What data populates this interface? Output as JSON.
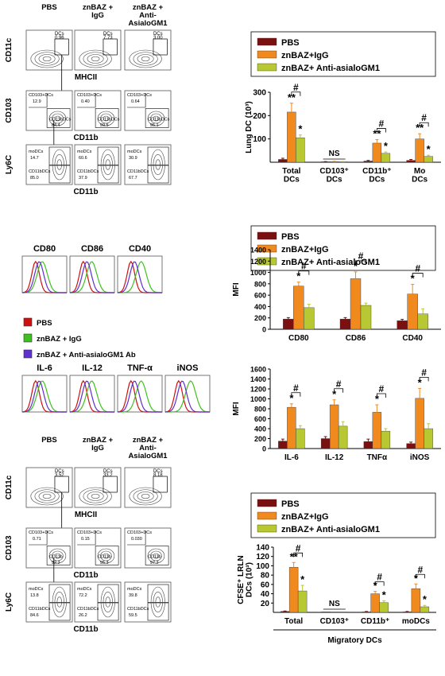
{
  "colors": {
    "pbs": "#7a1010",
    "igg": "#f08a1e",
    "asialo": "#b8c832",
    "frame": "#555555",
    "legend_red": "#d01010",
    "legend_green": "#40c020",
    "legend_blue": "#6030d0"
  },
  "flow_top": {
    "groups": [
      "PBS",
      "znBAZ +\nIgG",
      "znBAZ +\nAnti-\nAsialoGM1"
    ],
    "row1": {
      "ylabel": "CD11c",
      "xlabel": "MHCII",
      "gate": "DCs",
      "values": [
        "0.96",
        "7.73",
        "3.00"
      ]
    },
    "row2": {
      "ylabel": "CD103",
      "xlabel": "CD11b",
      "gate_top": "CD103+DCs",
      "gate_bottom": "CD11bDCs",
      "top_values": [
        "12.9",
        "0.40",
        "0.64"
      ],
      "bottom_values": [
        "84.4",
        "99.5",
        "95.1"
      ]
    },
    "row3": {
      "ylabel": "Ly6C",
      "xlabel": "CD11b",
      "gate_top": "moDCs",
      "gate_bottom": "CD11bDCs",
      "top_values": [
        "14.7",
        "60.6",
        "30.9"
      ],
      "bottom_values": [
        "85.0",
        "37.9",
        "67.7"
      ]
    }
  },
  "histograms_costim": {
    "titles": [
      "CD80",
      "CD86",
      "CD40"
    ]
  },
  "hist_legend": [
    "PBS",
    "znBAZ + IgG",
    "znBAZ + Anti-asialoGM1 Ab"
  ],
  "histograms_cyto": {
    "titles": [
      "IL-6",
      "IL-12",
      "TNF-α",
      "iNOS"
    ]
  },
  "flow_bottom": {
    "groups": [
      "PBS",
      "znBAZ +\nIgG",
      "znBAZ +\nAnti-\nAsialoGM1"
    ],
    "row1": {
      "ylabel": "CD11c",
      "xlabel": "MHCII",
      "gate": "DCs",
      "values": [
        "3.52",
        "33.2",
        "8.18"
      ]
    },
    "row2": {
      "ylabel": "CD103",
      "xlabel": "CD11b",
      "gate_top": "CD103+DCs",
      "gate_bottom": "CD11b",
      "top_values": [
        "0.71",
        "0.15",
        "0.030"
      ],
      "bottom_values": [
        "92.2",
        "95.3",
        "97.2"
      ]
    },
    "row3": {
      "ylabel": "Ly6C",
      "xlabel": "CD11b",
      "gate_top": "moDCs",
      "gate_bottom": "CD11bDCs",
      "top_values": [
        "13.8",
        "72.2",
        "39.8"
      ],
      "bottom_values": [
        "84.6",
        "26.2",
        "59.5"
      ]
    }
  },
  "chart_data": [
    {
      "type": "bar",
      "ylabel": "Lung DC (10³)",
      "ylim": [
        0,
        300
      ],
      "yticks": [
        100,
        200,
        300
      ],
      "legend": [
        "PBS",
        "znBAZ+IgG",
        "znBAZ+ Anti-asialoGM1"
      ],
      "categories": [
        "Total\nDCs",
        "CD103⁺\nDCs",
        "CD11b⁺\nDCs",
        "Mo\nDCs"
      ],
      "series": [
        {
          "name": "PBS",
          "values": [
            12,
            2,
            5,
            8
          ]
        },
        {
          "name": "znBAZ+IgG",
          "values": [
            215,
            3,
            82,
            100
          ]
        },
        {
          "name": "znBAZ+ Anti-asialoGM1",
          "values": [
            105,
            2,
            38,
            25
          ]
        }
      ],
      "errors": [
        [
          5,
          1,
          3,
          4
        ],
        [
          38,
          1,
          15,
          22
        ],
        [
          12,
          1,
          6,
          5
        ]
      ],
      "star_labels": [
        [
          "",
          "**",
          "*"
        ],
        [
          "",
          "",
          ""
        ],
        [
          "",
          "**",
          "*"
        ],
        [
          "",
          "**",
          "*"
        ]
      ],
      "brackets": [
        {
          "group": 0,
          "sig": "**",
          "hash": "#"
        },
        {
          "group": 1,
          "text": "NS"
        },
        {
          "group": 2,
          "sig": "",
          "hash": "#"
        },
        {
          "group": 3,
          "sig": "",
          "hash": "#"
        }
      ]
    },
    {
      "type": "bar",
      "ylabel": "MFI",
      "ylim": [
        0,
        1400
      ],
      "yticks": [
        0,
        200,
        400,
        600,
        800,
        1000,
        1200,
        1400
      ],
      "legend": [
        "PBS",
        "znBAZ+IgG",
        "znBAZ+ Anti-asialoGM1"
      ],
      "categories": [
        "CD80",
        "CD86",
        "CD40"
      ],
      "series": [
        {
          "name": "PBS",
          "values": [
            180,
            180,
            150
          ]
        },
        {
          "name": "znBAZ+IgG",
          "values": [
            760,
            890,
            620
          ]
        },
        {
          "name": "znBAZ+ Anti-asialoGM1",
          "values": [
            380,
            420,
            270
          ]
        }
      ],
      "errors": [
        [
          25,
          25,
          25
        ],
        [
          70,
          120,
          170
        ],
        [
          60,
          40,
          90
        ]
      ],
      "star_labels": [
        [
          "",
          "*",
          ""
        ],
        [
          "",
          "*",
          ""
        ],
        [
          "",
          "*",
          ""
        ]
      ],
      "brackets": [
        {
          "group": 0,
          "hash": "#"
        },
        {
          "group": 1,
          "hash": "#"
        },
        {
          "group": 2,
          "hash": "#"
        }
      ]
    },
    {
      "type": "bar",
      "ylabel": "MFI",
      "ylim": [
        0,
        1600
      ],
      "yticks": [
        0,
        200,
        400,
        600,
        800,
        1000,
        1200,
        1400,
        1600
      ],
      "categories": [
        "IL-6",
        "IL-12",
        "TNFα",
        "iNOS"
      ],
      "series": [
        {
          "values": [
            150,
            200,
            140,
            100
          ]
        },
        {
          "values": [
            830,
            880,
            730,
            1010
          ]
        },
        {
          "values": [
            400,
            450,
            350,
            400
          ]
        }
      ],
      "errors": [
        [
          40,
          40,
          50,
          30
        ],
        [
          70,
          100,
          150,
          200
        ],
        [
          60,
          90,
          50,
          100
        ]
      ],
      "star_labels": [
        [
          "",
          "*",
          ""
        ],
        [
          "",
          "*",
          ""
        ],
        [
          "",
          "*",
          ""
        ],
        [
          "",
          "*",
          ""
        ]
      ],
      "brackets": [
        {
          "group": 0,
          "hash": "#"
        },
        {
          "group": 1,
          "hash": "#"
        },
        {
          "group": 2,
          "hash": "#"
        },
        {
          "group": 3,
          "hash": "#"
        }
      ]
    },
    {
      "type": "bar",
      "ylabel": "CFSE⁺ LRLN\nDCs (10³)",
      "xlabel": "Migratory DCs",
      "ylim": [
        0,
        140
      ],
      "yticks": [
        20,
        40,
        60,
        80,
        100,
        120,
        140
      ],
      "legend": [
        "PBS",
        "znBAZ+IgG",
        "znBAZ+ Anti-asialoGM1"
      ],
      "categories": [
        "Total",
        "CD103⁺",
        "CD11b⁺",
        "moDCs"
      ],
      "series": [
        {
          "name": "PBS",
          "values": [
            2,
            1,
            1,
            1
          ]
        },
        {
          "name": "znBAZ+IgG",
          "values": [
            97,
            1,
            40,
            51
          ]
        },
        {
          "name": "znBAZ+ Anti-asialoGM1",
          "values": [
            46,
            1,
            21,
            12
          ]
        }
      ],
      "errors": [
        [
          1,
          0,
          1,
          1
        ],
        [
          10,
          0,
          5,
          10
        ],
        [
          12,
          0,
          4,
          3
        ]
      ],
      "star_labels": [
        [
          "",
          "**",
          "*"
        ],
        [
          "",
          "",
          ""
        ],
        [
          "",
          "*",
          "*"
        ],
        [
          "",
          "*",
          "*"
        ]
      ],
      "brackets": [
        {
          "group": 0,
          "hash": "#"
        },
        {
          "group": 1,
          "text": "NS"
        },
        {
          "group": 2,
          "hash": "#"
        },
        {
          "group": 3,
          "hash": "#"
        }
      ]
    }
  ]
}
